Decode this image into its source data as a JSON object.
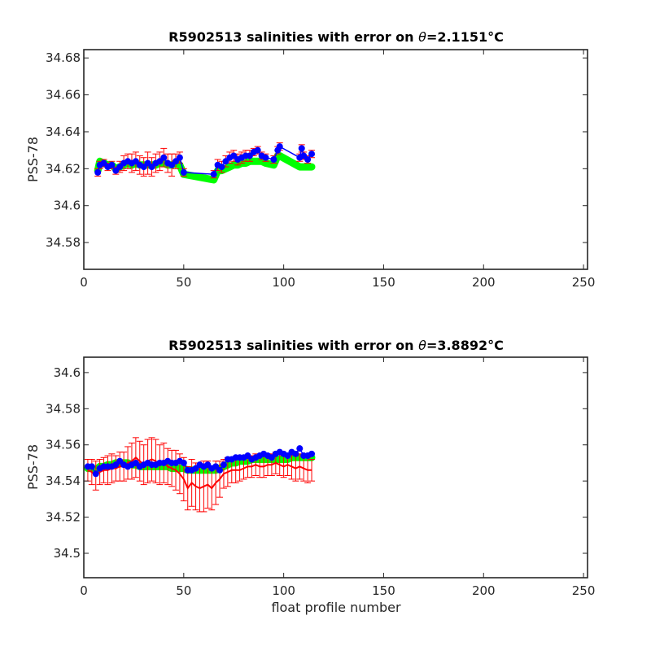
{
  "chart_data": [
    {
      "type": "line",
      "title_prefix": "R5902513 salinities with error on ",
      "title_theta": "θ",
      "title_value": "=2.1151",
      "title_unit": "°C",
      "xlabel": "",
      "ylabel": "PSS-78",
      "xlim": [
        0,
        252
      ],
      "ylim": [
        34.5655,
        34.6845
      ],
      "xticks": [
        0,
        50,
        100,
        150,
        200,
        250
      ],
      "yticks": [
        34.58,
        34.6,
        34.62,
        34.64,
        34.66,
        34.68
      ],
      "ytick_labels": [
        "34.58",
        "34.6",
        "34.62",
        "34.64",
        "34.66",
        "34.68"
      ],
      "colors": {
        "band": "#00ff00",
        "error": "#ff0000",
        "points": "#0000ff"
      },
      "series": [
        {
          "x": [
            7,
            8,
            10,
            12,
            14,
            16,
            18,
            20,
            22,
            24,
            26,
            28,
            30,
            32,
            34,
            36,
            38,
            40,
            42,
            44,
            46,
            48,
            50,
            65,
            67,
            69,
            71,
            73,
            75,
            77,
            79,
            81,
            83,
            85,
            87,
            89,
            91,
            95,
            97,
            98,
            108,
            109,
            110,
            112,
            114
          ],
          "salinity": [
            34.618,
            34.622,
            34.623,
            34.621,
            34.622,
            34.619,
            34.621,
            34.623,
            34.624,
            34.623,
            34.624,
            34.622,
            34.621,
            34.623,
            34.621,
            34.623,
            34.624,
            34.626,
            34.623,
            34.622,
            34.624,
            34.626,
            34.618,
            34.617,
            34.622,
            34.621,
            34.624,
            34.626,
            34.627,
            34.625,
            34.626,
            34.627,
            34.627,
            34.629,
            34.63,
            34.627,
            34.626,
            34.625,
            34.63,
            34.632,
            34.626,
            34.631,
            34.627,
            34.625,
            34.628
          ],
          "mapped": [
            34.619,
            34.624,
            34.623,
            34.622,
            34.622,
            34.62,
            34.621,
            34.622,
            34.623,
            34.622,
            34.623,
            34.622,
            34.622,
            34.622,
            34.622,
            34.622,
            34.623,
            34.623,
            34.622,
            34.622,
            34.623,
            34.622,
            34.617,
            34.614,
            34.619,
            34.619,
            34.62,
            34.621,
            34.622,
            34.622,
            34.623,
            34.623,
            34.624,
            34.624,
            34.624,
            34.624,
            34.623,
            34.622,
            34.627,
            34.627,
            34.621,
            34.621,
            34.621,
            34.621,
            34.621
          ],
          "error": [
            0.002,
            0.002,
            0.002,
            0.002,
            0.002,
            0.002,
            0.003,
            0.004,
            0.004,
            0.005,
            0.005,
            0.005,
            0.005,
            0.006,
            0.005,
            0.005,
            0.005,
            0.005,
            0.005,
            0.006,
            0.004,
            0.003,
            0.002,
            0.002,
            0.003,
            0.003,
            0.003,
            0.003,
            0.003,
            0.003,
            0.003,
            0.003,
            0.003,
            0.002,
            0.002,
            0.002,
            0.002,
            0.002,
            0.002,
            0.002,
            0.002,
            0.002,
            0.002,
            0.002,
            0.002
          ]
        }
      ]
    },
    {
      "type": "line",
      "title_prefix": "R5902513 salinities with error on ",
      "title_theta": "θ",
      "title_value": "=3.8892",
      "title_unit": "°C",
      "xlabel": "float profile number",
      "ylabel": "PSS-78",
      "xlim": [
        0,
        252
      ],
      "ylim": [
        34.4865,
        34.6085
      ],
      "xticks": [
        0,
        50,
        100,
        150,
        200,
        250
      ],
      "yticks": [
        34.5,
        34.52,
        34.54,
        34.56,
        34.58,
        34.6
      ],
      "ytick_labels": [
        "34.5",
        "34.52",
        "34.54",
        "34.56",
        "34.58",
        "34.6"
      ],
      "colors": {
        "band": "#00ff00",
        "error": "#ff0000",
        "points": "#0000ff"
      },
      "series": [
        {
          "x": [
            2,
            4,
            6,
            8,
            10,
            12,
            14,
            16,
            18,
            20,
            22,
            24,
            26,
            28,
            30,
            32,
            34,
            36,
            38,
            40,
            42,
            44,
            46,
            48,
            50,
            52,
            54,
            56,
            58,
            60,
            62,
            64,
            66,
            68,
            70,
            72,
            74,
            76,
            78,
            80,
            82,
            84,
            86,
            88,
            90,
            92,
            94,
            96,
            98,
            100,
            102,
            104,
            106,
            108,
            110,
            112,
            114
          ],
          "salinity": [
            34.548,
            34.548,
            34.544,
            34.547,
            34.548,
            34.548,
            34.548,
            34.549,
            34.551,
            34.549,
            34.548,
            34.549,
            34.55,
            34.548,
            34.549,
            34.55,
            34.549,
            34.549,
            34.55,
            34.55,
            34.551,
            34.55,
            34.55,
            34.551,
            34.55,
            34.546,
            34.546,
            34.547,
            34.549,
            34.548,
            34.549,
            34.547,
            34.548,
            34.546,
            34.549,
            34.552,
            34.552,
            34.553,
            34.553,
            34.553,
            34.554,
            34.552,
            34.553,
            34.554,
            34.555,
            34.554,
            34.553,
            34.555,
            34.556,
            34.555,
            34.554,
            34.556,
            34.555,
            34.558,
            34.554,
            34.554,
            34.555
          ],
          "mapped": [
            34.547,
            34.547,
            34.546,
            34.548,
            34.548,
            34.549,
            34.549,
            34.55,
            34.55,
            34.55,
            34.55,
            34.549,
            34.549,
            34.548,
            34.548,
            34.548,
            34.548,
            34.548,
            34.548,
            34.548,
            34.548,
            34.547,
            34.547,
            34.547,
            34.547,
            34.546,
            34.546,
            34.546,
            34.546,
            34.546,
            34.546,
            34.546,
            34.546,
            34.547,
            34.548,
            34.549,
            34.55,
            34.55,
            34.551,
            34.551,
            34.551,
            34.552,
            34.552,
            34.552,
            34.552,
            34.552,
            34.552,
            34.552,
            34.552,
            34.552,
            34.552,
            34.553,
            34.553,
            34.553,
            34.553,
            34.553,
            34.553
          ],
          "red": [
            34.546,
            34.545,
            34.543,
            34.545,
            34.546,
            34.546,
            34.547,
            34.547,
            34.548,
            34.548,
            34.55,
            34.551,
            34.553,
            34.551,
            34.549,
            34.551,
            34.552,
            34.551,
            34.549,
            34.55,
            34.548,
            34.547,
            34.546,
            34.544,
            34.541,
            34.536,
            34.539,
            34.537,
            34.536,
            34.537,
            34.538,
            34.536,
            34.539,
            34.541,
            34.544,
            34.545,
            34.546,
            34.546,
            34.546,
            34.547,
            34.548,
            34.548,
            34.549,
            34.548,
            34.548,
            34.549,
            34.549,
            34.55,
            34.549,
            34.548,
            34.549,
            34.548,
            34.547,
            34.548,
            34.547,
            34.546,
            34.546
          ],
          "error": [
            0.006,
            0.007,
            0.008,
            0.007,
            0.007,
            0.008,
            0.008,
            0.007,
            0.008,
            0.008,
            0.009,
            0.01,
            0.011,
            0.011,
            0.011,
            0.012,
            0.012,
            0.012,
            0.011,
            0.011,
            0.01,
            0.01,
            0.011,
            0.011,
            0.012,
            0.012,
            0.013,
            0.013,
            0.013,
            0.014,
            0.013,
            0.012,
            0.012,
            0.01,
            0.008,
            0.008,
            0.007,
            0.007,
            0.006,
            0.006,
            0.006,
            0.006,
            0.006,
            0.006,
            0.006,
            0.006,
            0.006,
            0.006,
            0.006,
            0.006,
            0.006,
            0.007,
            0.007,
            0.007,
            0.007,
            0.007,
            0.006
          ]
        }
      ]
    }
  ]
}
